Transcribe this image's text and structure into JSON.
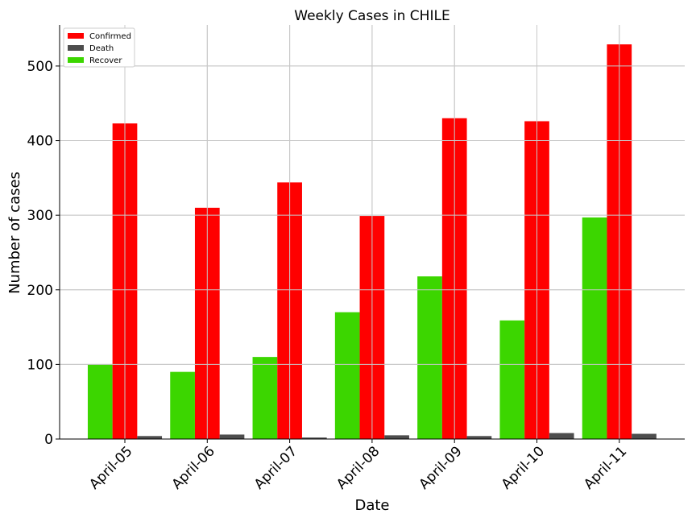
{
  "chart_data": {
    "type": "bar",
    "title": "Weekly Cases in CHILE",
    "xlabel": "Date",
    "ylabel": "Number of cases",
    "categories": [
      "April-05",
      "April-06",
      "April-07",
      "April-08",
      "April-09",
      "April-10",
      "April-11"
    ],
    "series": [
      {
        "name": "Recover",
        "color": "#3cd600",
        "values": [
          100,
          90,
          110,
          170,
          218,
          159,
          297
        ]
      },
      {
        "name": "Confirmed",
        "color": "#ff0000",
        "values": [
          423,
          310,
          344,
          299,
          430,
          426,
          529
        ]
      },
      {
        "name": "Death",
        "color": "#4d4d4d",
        "values": [
          4,
          6,
          2,
          5,
          4,
          8,
          7
        ]
      }
    ],
    "legend_order": [
      "Confirmed",
      "Death",
      "Recover"
    ],
    "ylim": [
      0,
      555
    ],
    "yticks": [
      0,
      100,
      200,
      300,
      400,
      500
    ],
    "grid": true,
    "legend": "top-left"
  }
}
